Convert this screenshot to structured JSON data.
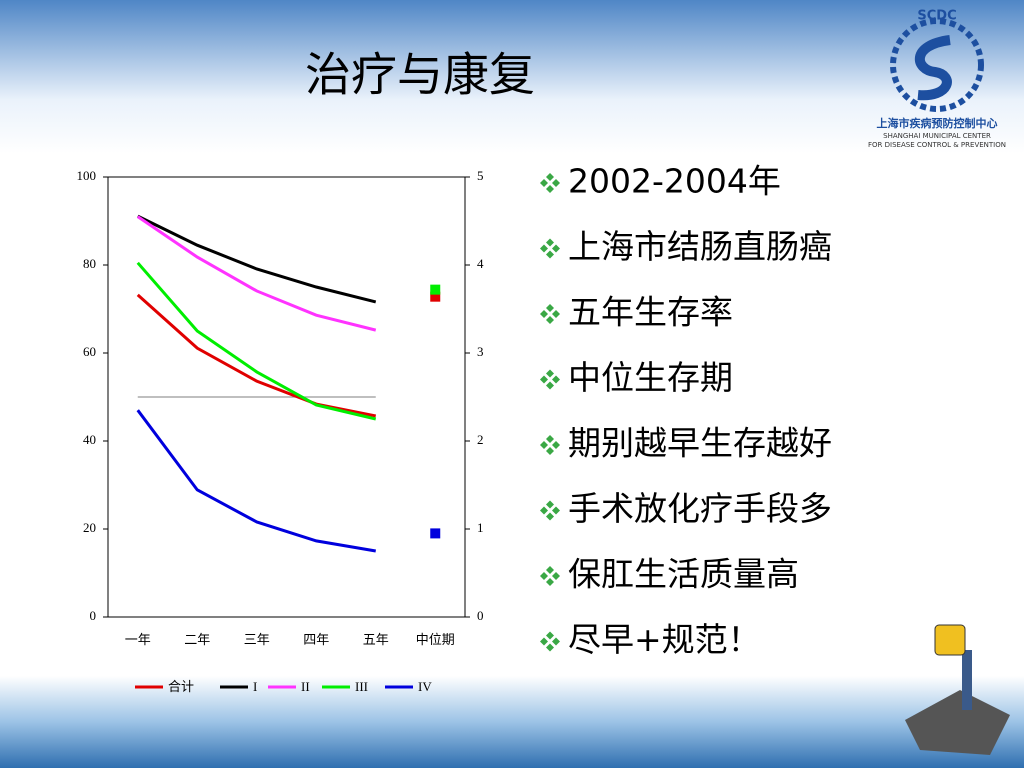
{
  "title": "治疗与康复",
  "logo": {
    "acronym": "SCDC",
    "name": "上海市疾病预防控制中心",
    "english_1": "SHANGHAI MUNICIPAL CENTER",
    "english_2": "FOR DISEASE CONTROL & PREVENTION"
  },
  "bullets": [
    "2002-2004年",
    "上海市结肠直肠癌",
    "五年生存率",
    "中位生存期",
    "期别越早生存越好",
    "手术放化疗手段多",
    "保肛生活质量高",
    "尽早+规范！"
  ],
  "chart_data": {
    "type": "line",
    "categories": [
      "一年",
      "二年",
      "三年",
      "四年",
      "五年",
      "中位期"
    ],
    "ylim": [
      0,
      100
    ],
    "yticks": [
      0,
      20,
      40,
      60,
      80,
      100
    ],
    "y2lim": [
      0,
      5
    ],
    "y2ticks": [
      0,
      1,
      2,
      3,
      4,
      5
    ],
    "reference_line": 50,
    "reference_color": "#999999",
    "series": [
      {
        "name": "合计",
        "color": "#e00000",
        "values": [
          73.2,
          61.1,
          53.6,
          48.4,
          45.7,
          null
        ],
        "median": 3.64
      },
      {
        "name": "I",
        "color": "#000000",
        "values": [
          91.1,
          84.5,
          79.1,
          75,
          71.6,
          null
        ]
      },
      {
        "name": "II",
        "color": "#ff33ff",
        "values": [
          91,
          81.8,
          74.1,
          68.6,
          65.2,
          null
        ]
      },
      {
        "name": "III",
        "color": "#00ee00",
        "values": [
          80.5,
          65,
          55.7,
          48.2,
          45,
          null
        ],
        "median": 3.72
      },
      {
        "name": "IV",
        "color": "#0000dd",
        "values": [
          47,
          28.9,
          21.6,
          17.3,
          15,
          null
        ],
        "median": 0.95
      }
    ]
  }
}
